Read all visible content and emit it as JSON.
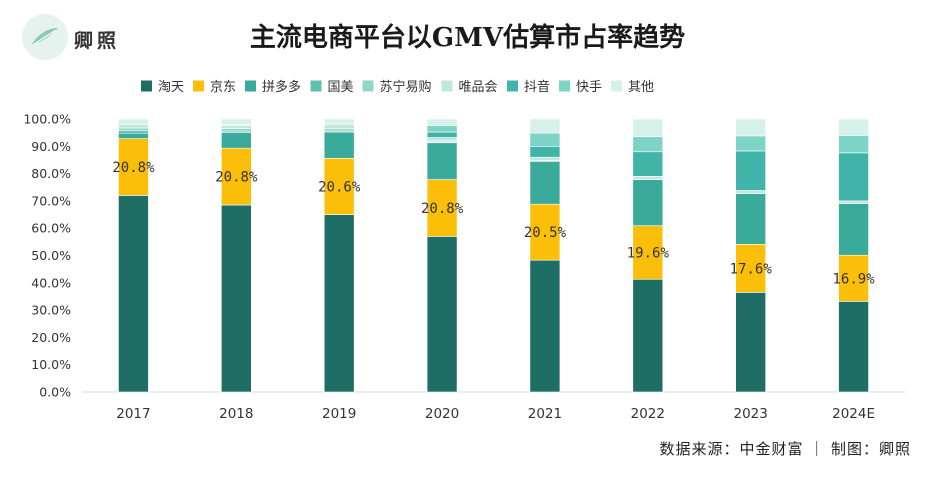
{
  "header": {
    "logo_icon": "leaf-logo-icon",
    "logo_text": "卿照",
    "title": "主流电商平台以GMV估算市占率趋势"
  },
  "footer": {
    "source": "数据来源：中金财富 ｜ 制图：卿照"
  },
  "chart_data": {
    "type": "bar",
    "stacked": true,
    "categories": [
      "2017",
      "2018",
      "2019",
      "2020",
      "2021",
      "2022",
      "2023",
      "2024E"
    ],
    "ylim": [
      0,
      100
    ],
    "ytick_labels": [
      "0.0%",
      "10.0%",
      "20.0%",
      "30.0%",
      "40.0%",
      "50.0%",
      "60.0%",
      "70.0%",
      "80.0%",
      "90.0%",
      "100.0%"
    ],
    "legend_position": "top",
    "grid": false,
    "series": [
      {
        "name": "淘天",
        "color": "#1f6e66",
        "values": [
          72.0,
          68.5,
          65.0,
          57.0,
          48.3,
          41.3,
          36.5,
          33.2
        ]
      },
      {
        "name": "京东",
        "color": "#fbbf0a",
        "values": [
          20.8,
          20.8,
          20.6,
          20.8,
          20.5,
          19.6,
          17.6,
          16.9
        ]
      },
      {
        "name": "拼多多",
        "color": "#3aaa9a",
        "values": [
          2.0,
          5.7,
          9.6,
          13.5,
          15.7,
          16.9,
          18.6,
          18.9
        ]
      },
      {
        "name": "国美",
        "color": "#5bc0ad",
        "values": [
          0.9,
          0.6,
          0.4,
          0.3,
          0.1,
          0.0,
          0.0,
          0.0
        ]
      },
      {
        "name": "苏宁易购",
        "color": "#8fd4c5",
        "values": [
          1.0,
          0.9,
          0.8,
          0.4,
          0.2,
          0.1,
          0.0,
          0.0
        ]
      },
      {
        "name": "唯品会",
        "color": "#bfe7df",
        "values": [
          1.3,
          1.2,
          1.2,
          1.2,
          1.2,
          1.1,
          1.1,
          1.0
        ]
      },
      {
        "name": "抖音",
        "color": "#40b4a8",
        "values": [
          0.0,
          0.2,
          0.4,
          2.0,
          4.0,
          9.0,
          14.5,
          17.6
        ]
      },
      {
        "name": "快手",
        "color": "#7dd3c5",
        "values": [
          0.0,
          0.1,
          0.3,
          2.4,
          4.8,
          5.5,
          5.5,
          6.4
        ]
      },
      {
        "name": "其他",
        "color": "#d6f0ea",
        "values": [
          2.0,
          2.0,
          1.7,
          2.4,
          5.2,
          6.5,
          6.2,
          6.0
        ]
      }
    ],
    "data_labels": {
      "series": "京东",
      "values": [
        "20.8%",
        "20.8%",
        "20.6%",
        "20.8%",
        "20.5%",
        "19.6%",
        "17.6%",
        "16.9%"
      ]
    }
  }
}
